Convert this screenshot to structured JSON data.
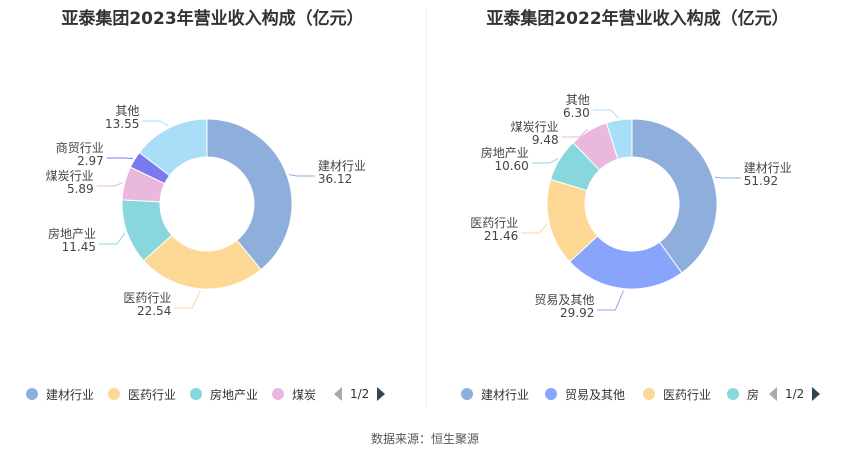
{
  "chart_data": [
    {
      "type": "pie",
      "title": "亚泰集团2023年营业收入构成（亿元）",
      "slices": [
        {
          "label": "建材行业",
          "value": 36.12,
          "value_label": "36.12",
          "color": "#8eaedb"
        },
        {
          "label": "医药行业",
          "value": 22.54,
          "value_label": "22.54",
          "color": "#fdd794"
        },
        {
          "label": "房地产业",
          "value": 11.45,
          "value_label": "11.45",
          "color": "#87d7dc"
        },
        {
          "label": "煤炭行业",
          "value": 5.89,
          "value_label": "5.89",
          "color": "#e9b8dc"
        },
        {
          "label": "商贸行业",
          "value": 2.97,
          "value_label": "2.97",
          "color": "#7b79ee"
        },
        {
          "label": "其他",
          "value": 13.55,
          "value_label": "13.55",
          "color": "#a9def9"
        }
      ],
      "legend": {
        "items": [
          "建材行业",
          "医药行业",
          "房地产业",
          "煤炭"
        ],
        "page": "1/2",
        "position": "bottom"
      }
    },
    {
      "type": "pie",
      "title": "亚泰集团2022年营业收入构成（亿元）",
      "slices": [
        {
          "label": "建材行业",
          "value": 51.92,
          "value_label": "51.92",
          "color": "#8eaedb"
        },
        {
          "label": "贸易及其他",
          "value": 29.92,
          "value_label": "29.92",
          "color": "#89a4fb"
        },
        {
          "label": "医药行业",
          "value": 21.46,
          "value_label": "21.46",
          "color": "#fdd794"
        },
        {
          "label": "房地产业",
          "value": 10.6,
          "value_label": "10.60",
          "color": "#87d7dc"
        },
        {
          "label": "煤炭行业",
          "value": 9.48,
          "value_label": "9.48",
          "color": "#e9b8dc"
        },
        {
          "label": "其他",
          "value": 6.3,
          "value_label": "6.30",
          "color": "#a9def9"
        }
      ],
      "legend": {
        "items": [
          "建材行业",
          "贸易及其他",
          "医药行业",
          "房"
        ],
        "page": "1/2",
        "position": "bottom"
      }
    }
  ],
  "footer": {
    "source": "数据来源：恒生聚源"
  }
}
